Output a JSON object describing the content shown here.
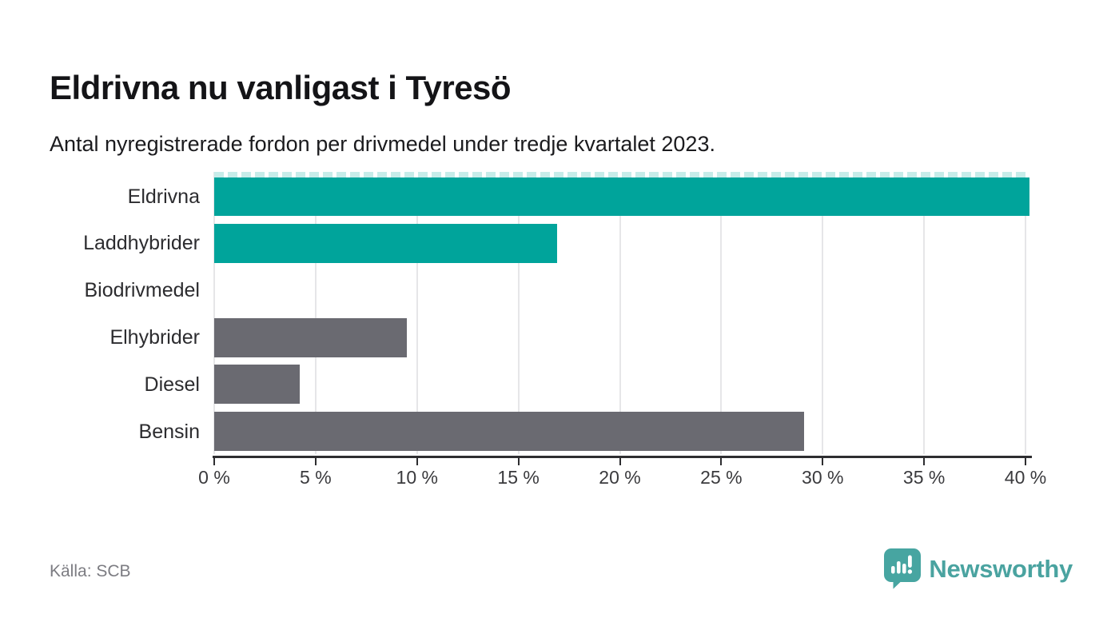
{
  "chart_data": {
    "type": "bar",
    "orientation": "horizontal",
    "title": "Eldrivna nu vanligast i Tyresö",
    "subtitle": "Antal nyregistrerade fordon per drivmedel under tredje kvartalet 2023.",
    "categories": [
      "Eldrivna",
      "Laddhybrider",
      "Biodrivmedel",
      "Elhybrider",
      "Diesel",
      "Bensin"
    ],
    "values": [
      40.2,
      16.9,
      0,
      9.5,
      4.2,
      29.1
    ],
    "bar_colors": [
      "#00a49b",
      "#00a49b",
      "#6a6a71",
      "#6a6a71",
      "#6a6a71",
      "#6a6a71"
    ],
    "xlim": [
      0,
      40
    ],
    "xticks": [
      0,
      5,
      10,
      15,
      20,
      25,
      30,
      35,
      40
    ],
    "tick_label_suffix": " %",
    "grid": true,
    "legend": "none",
    "overflow_indicator": {
      "category": "Eldrivna",
      "style": "dashed-strip"
    }
  },
  "colors": {
    "accent_teal": "#00a49b",
    "bar_gray": "#6a6a71",
    "gridline": "#e6e6e8",
    "axis": "#2d2d30",
    "overflow_dash": "#c6ece9",
    "brand_teal": "#47a5a1"
  },
  "footer": {
    "source": "Källa: SCB",
    "brand_name": "Newsworthy"
  }
}
